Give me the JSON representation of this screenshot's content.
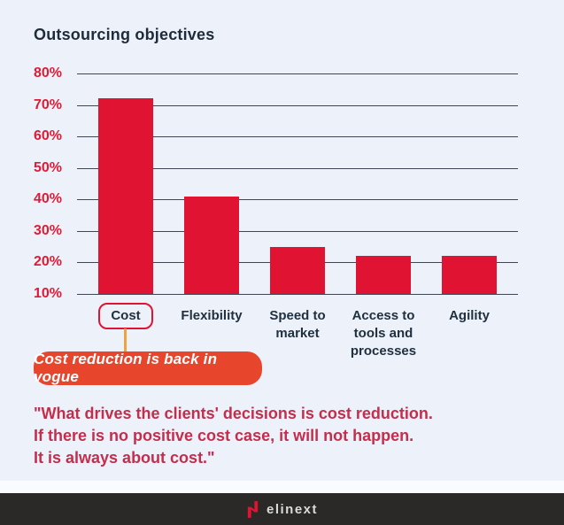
{
  "title": "Outsourcing objectives",
  "chart_data": {
    "type": "bar",
    "title": "Outsourcing objectives",
    "categories": [
      "Cost",
      "Flexibility",
      "Speed to\nmarket",
      "Access to\ntools and\nprocesses",
      "Agility"
    ],
    "values": [
      72,
      41,
      25,
      22,
      22
    ],
    "xlabel": "",
    "ylabel": "",
    "ylim": [
      10,
      80
    ],
    "yticks": [
      80,
      70,
      60,
      50,
      40,
      30,
      20,
      10
    ],
    "ytick_suffix": "%",
    "grid": true,
    "legend": false,
    "baseline": 10,
    "bar_color": "#e01432",
    "gridline_color": "#3e4653",
    "ytick_color": "#de1b36",
    "highlighted_category": "Cost"
  },
  "annotation": {
    "callout_text": "Cost reduction is back in vogue",
    "callout_bg": "#e7462d",
    "callout_text_color": "#ffffff",
    "connector_color": "#f0a23c"
  },
  "quote": {
    "text": "\"What drives the clients' decisions is cost reduction.\nIf there is no positive cost case, it will not happen.\nIt is always about cost.\"",
    "color": "#c42d4c"
  },
  "footer": {
    "brand": "elinext",
    "logo_icon": "elinext-n-mark",
    "bg": "#2a2928",
    "logo_color": "#e01432"
  },
  "colors": {
    "background": "#edf2fa",
    "title_text": "#1d2b3a",
    "xlabel_text": "#20303f"
  }
}
